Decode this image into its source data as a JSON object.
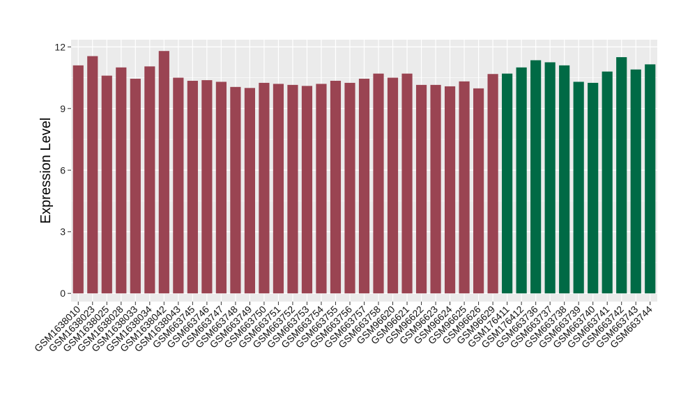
{
  "chart_data": {
    "type": "bar",
    "title": "",
    "xlabel": "",
    "ylabel": "Expression Level",
    "ylim": [
      -0.4,
      12.35
    ],
    "yticks": [
      0,
      3,
      6,
      9,
      12
    ],
    "grid": true,
    "legend": "none",
    "colors": {
      "group1": "#9a4452",
      "group2": "#006a45",
      "panel": "#ebebeb",
      "grid": "#ffffff"
    },
    "categories": [
      "GSM1638010",
      "GSM1638023",
      "GSM1638025",
      "GSM1638028",
      "GSM1638033",
      "GSM1638034",
      "GSM1638042",
      "GSM1638043",
      "GSM663745",
      "GSM663746",
      "GSM663747",
      "GSM663748",
      "GSM663749",
      "GSM663750",
      "GSM663751",
      "GSM663752",
      "GSM663753",
      "GSM663754",
      "GSM663755",
      "GSM663756",
      "GSM663757",
      "GSM663758",
      "GSM96620",
      "GSM96621",
      "GSM96622",
      "GSM96623",
      "GSM96624",
      "GSM96625",
      "GSM96626",
      "GSM96629",
      "GSM176411",
      "GSM176412",
      "GSM663736",
      "GSM663737",
      "GSM663738",
      "GSM663739",
      "GSM663740",
      "GSM663741",
      "GSM663742",
      "GSM663743",
      "GSM663744"
    ],
    "values": [
      11.1,
      11.55,
      10.6,
      11.0,
      10.45,
      11.05,
      11.8,
      10.5,
      10.35,
      10.38,
      10.3,
      10.05,
      10.0,
      10.25,
      10.2,
      10.15,
      10.1,
      10.2,
      10.35,
      10.25,
      10.45,
      10.7,
      10.5,
      10.7,
      10.15,
      10.15,
      10.08,
      10.32,
      9.98,
      10.68,
      10.7,
      11.0,
      11.35,
      11.25,
      11.1,
      10.3,
      10.25,
      10.8,
      11.5,
      10.9,
      11.15
    ],
    "groups": [
      1,
      1,
      1,
      1,
      1,
      1,
      1,
      1,
      1,
      1,
      1,
      1,
      1,
      1,
      1,
      1,
      1,
      1,
      1,
      1,
      1,
      1,
      1,
      1,
      1,
      1,
      1,
      1,
      1,
      1,
      2,
      2,
      2,
      2,
      2,
      2,
      2,
      2,
      2,
      2,
      2
    ]
  }
}
